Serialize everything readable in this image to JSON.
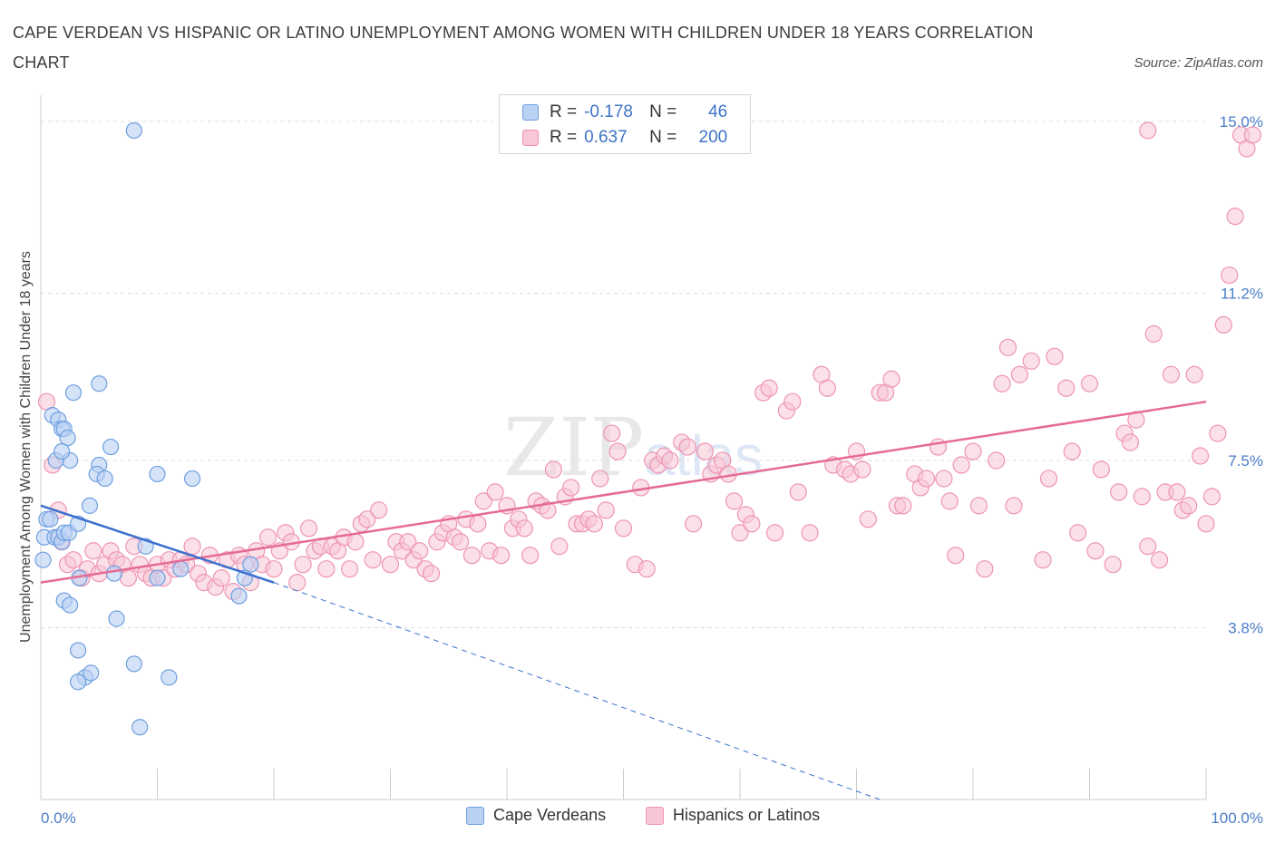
{
  "header": {
    "title": "CAPE VERDEAN VS HISPANIC OR LATINO UNEMPLOYMENT AMONG WOMEN WITH CHILDREN UNDER 18 YEARS CORRELATION CHART",
    "source": "Source: ZipAtlas.com"
  },
  "watermark": {
    "zip": "ZIP",
    "atlas": "atlas"
  },
  "legend": {
    "rows": [
      {
        "r_label": "R =",
        "r_value": "-0.178",
        "n_label": "N =",
        "n_value": "46",
        "color": "#7aa8e8"
      },
      {
        "r_label": "R =",
        "r_value": "0.637",
        "n_label": "N =",
        "n_value": "200",
        "color": "#f29ab8"
      }
    ]
  },
  "bottom_legend": {
    "items": [
      {
        "label": "Cape Verdeans",
        "color": "#7aa8e8"
      },
      {
        "label": "Hispanics or Latinos",
        "color": "#f29ab8"
      }
    ]
  },
  "colors": {
    "blue_fill": "#b9d1f3",
    "blue_stroke": "#6e9fe0",
    "blue_line": "#3a6fcf",
    "pink_fill": "#f8c6d6",
    "pink_stroke": "#ee94b3",
    "pink_line": "#e56b95",
    "grid": "#dddddd",
    "tick_text": "#4a7cc7"
  },
  "chart_data": {
    "type": "scatter",
    "title": "CAPE VERDEAN VS HISPANIC OR LATINO UNEMPLOYMENT AMONG WOMEN WITH CHILDREN UNDER 18 YEARS CORRELATION CHART",
    "xlabel": "",
    "ylabel": "Unemployment Among Women with Children Under 18 years",
    "xlim": [
      0,
      100
    ],
    "ylim": [
      0,
      15.3
    ],
    "x_tick_labels": [
      "0.0%",
      "100.0%"
    ],
    "y_ticks": [
      3.8,
      7.5,
      11.2,
      15.0
    ],
    "y_tick_labels": [
      "3.8%",
      "7.5%",
      "11.2%",
      "15.0%"
    ],
    "grid": true,
    "legend_position": "top-center",
    "series": [
      {
        "name": "Cape Verdeans",
        "r": -0.178,
        "n": 46,
        "trend": {
          "x": [
            0,
            20,
            72
          ],
          "y": [
            6.5,
            4.8,
            0.0
          ],
          "solid_until_x": 20
        },
        "points": [
          [
            8,
            14.8
          ],
          [
            0.5,
            6.2
          ],
          [
            0.3,
            5.8
          ],
          [
            0.8,
            6.2
          ],
          [
            0.2,
            5.3
          ],
          [
            1.2,
            5.8
          ],
          [
            1.5,
            5.8
          ],
          [
            1.8,
            5.7
          ],
          [
            2,
            5.9
          ],
          [
            2.4,
            5.9
          ],
          [
            1,
            8.5
          ],
          [
            1.5,
            8.4
          ],
          [
            1.8,
            8.2
          ],
          [
            2,
            8.2
          ],
          [
            2.3,
            8
          ],
          [
            2.5,
            7.5
          ],
          [
            1.3,
            7.5
          ],
          [
            1.8,
            7.7
          ],
          [
            2.8,
            9
          ],
          [
            5,
            9.2
          ],
          [
            5,
            7.4
          ],
          [
            4.8,
            7.2
          ],
          [
            5.5,
            7.1
          ],
          [
            6,
            7.8
          ],
          [
            10,
            7.2
          ],
          [
            13,
            7.1
          ],
          [
            4.2,
            6.5
          ],
          [
            3.2,
            6.1
          ],
          [
            9,
            5.6
          ],
          [
            12,
            5.1
          ],
          [
            3.3,
            4.9
          ],
          [
            6.3,
            5
          ],
          [
            10,
            4.9
          ],
          [
            2,
            4.4
          ],
          [
            2.5,
            4.3
          ],
          [
            6.5,
            4
          ],
          [
            3.2,
            3.3
          ],
          [
            3.8,
            2.7
          ],
          [
            4.3,
            2.8
          ],
          [
            3.2,
            2.6
          ],
          [
            8,
            3
          ],
          [
            11,
            2.7
          ],
          [
            8.5,
            1.6
          ],
          [
            17,
            4.5
          ],
          [
            18,
            5.2
          ],
          [
            17.5,
            4.9
          ]
        ]
      },
      {
        "name": "Hispanics or Latinos",
        "r": 0.637,
        "n": 200,
        "trend": {
          "x": [
            0,
            100
          ],
          "y": [
            4.8,
            8.8
          ]
        },
        "points": [
          [
            0.5,
            8.8
          ],
          [
            1,
            7.4
          ],
          [
            1.5,
            6.4
          ],
          [
            1.8,
            5.7
          ],
          [
            2.3,
            5.2
          ],
          [
            2.8,
            5.3
          ],
          [
            3.5,
            4.9
          ],
          [
            4,
            5.1
          ],
          [
            4.5,
            5.5
          ],
          [
            5,
            5
          ],
          [
            5.5,
            5.2
          ],
          [
            6,
            5.5
          ],
          [
            6.5,
            5.3
          ],
          [
            7,
            5.2
          ],
          [
            7.5,
            4.9
          ],
          [
            8,
            5.6
          ],
          [
            8.5,
            5.2
          ],
          [
            9,
            5
          ],
          [
            9.5,
            4.9
          ],
          [
            10,
            5.2
          ],
          [
            10.5,
            4.9
          ],
          [
            11,
            5.3
          ],
          [
            11.5,
            5.1
          ],
          [
            12,
            5.3
          ],
          [
            12.5,
            5.2
          ],
          [
            13,
            5.6
          ],
          [
            13.5,
            5
          ],
          [
            14,
            4.8
          ],
          [
            14.5,
            5.4
          ],
          [
            15,
            4.7
          ],
          [
            15.5,
            4.9
          ],
          [
            16,
            5.3
          ],
          [
            16.5,
            4.6
          ],
          [
            17,
            5.4
          ],
          [
            17.5,
            5.2
          ],
          [
            18,
            4.8
          ],
          [
            18.5,
            5.5
          ],
          [
            19,
            5.2
          ],
          [
            19.5,
            5.8
          ],
          [
            20,
            5.1
          ],
          [
            20.5,
            5.5
          ],
          [
            21,
            5.9
          ],
          [
            21.5,
            5.7
          ],
          [
            22,
            4.8
          ],
          [
            22.5,
            5.2
          ],
          [
            23,
            6
          ],
          [
            23.5,
            5.5
          ],
          [
            24,
            5.6
          ],
          [
            24.5,
            5.1
          ],
          [
            25,
            5.6
          ],
          [
            25.5,
            5.5
          ],
          [
            26,
            5.8
          ],
          [
            26.5,
            5.1
          ],
          [
            27,
            5.7
          ],
          [
            27.5,
            6.1
          ],
          [
            28,
            6.2
          ],
          [
            28.5,
            5.3
          ],
          [
            29,
            6.4
          ],
          [
            30,
            5.2
          ],
          [
            30.5,
            5.7
          ],
          [
            31,
            5.5
          ],
          [
            31.5,
            5.7
          ],
          [
            32,
            5.3
          ],
          [
            32.5,
            5.5
          ],
          [
            33,
            5.1
          ],
          [
            33.5,
            5
          ],
          [
            34,
            5.7
          ],
          [
            34.5,
            5.9
          ],
          [
            35,
            6.1
          ],
          [
            35.5,
            5.8
          ],
          [
            36,
            5.7
          ],
          [
            36.5,
            6.2
          ],
          [
            37,
            5.4
          ],
          [
            37.5,
            6.1
          ],
          [
            38,
            6.6
          ],
          [
            38.5,
            5.5
          ],
          [
            39,
            6.8
          ],
          [
            39.5,
            5.4
          ],
          [
            40,
            6.5
          ],
          [
            40.5,
            6
          ],
          [
            41,
            6.2
          ],
          [
            41.5,
            6
          ],
          [
            42,
            5.4
          ],
          [
            42.5,
            6.6
          ],
          [
            43,
            6.5
          ],
          [
            43.5,
            6.4
          ],
          [
            44,
            7.3
          ],
          [
            44.5,
            5.6
          ],
          [
            45,
            6.7
          ],
          [
            45.5,
            6.9
          ],
          [
            46,
            6.1
          ],
          [
            46.5,
            6.1
          ],
          [
            47,
            6.2
          ],
          [
            47.5,
            6.1
          ],
          [
            48,
            7.1
          ],
          [
            48.5,
            6.4
          ],
          [
            49,
            8.1
          ],
          [
            49.5,
            7.7
          ],
          [
            50,
            6
          ],
          [
            51,
            5.2
          ],
          [
            51.5,
            6.9
          ],
          [
            52,
            5.1
          ],
          [
            52.5,
            7.5
          ],
          [
            53,
            7.4
          ],
          [
            53.5,
            7.6
          ],
          [
            54,
            7.5
          ],
          [
            55,
            7.9
          ],
          [
            55.5,
            7.8
          ],
          [
            56,
            6.1
          ],
          [
            57,
            7.7
          ],
          [
            57.5,
            7.2
          ],
          [
            58,
            7.4
          ],
          [
            58.5,
            7.5
          ],
          [
            59,
            7.2
          ],
          [
            59.5,
            6.6
          ],
          [
            60,
            5.9
          ],
          [
            60.5,
            6.3
          ],
          [
            61,
            6.1
          ],
          [
            62,
            9
          ],
          [
            62.5,
            9.1
          ],
          [
            63,
            5.9
          ],
          [
            64,
            8.6
          ],
          [
            64.5,
            8.8
          ],
          [
            65,
            6.8
          ],
          [
            66,
            5.9
          ],
          [
            67,
            9.4
          ],
          [
            67.5,
            9.1
          ],
          [
            68,
            7.4
          ],
          [
            69,
            7.3
          ],
          [
            69.5,
            7.2
          ],
          [
            70,
            7.7
          ],
          [
            70.5,
            7.3
          ],
          [
            71,
            6.2
          ],
          [
            72,
            9
          ],
          [
            72.5,
            9
          ],
          [
            73,
            9.3
          ],
          [
            73.5,
            6.5
          ],
          [
            74,
            6.5
          ],
          [
            75,
            7.2
          ],
          [
            75.5,
            6.9
          ],
          [
            76,
            7.1
          ],
          [
            77,
            7.8
          ],
          [
            77.5,
            7.1
          ],
          [
            78,
            6.6
          ],
          [
            78.5,
            5.4
          ],
          [
            79,
            7.4
          ],
          [
            80,
            7.7
          ],
          [
            80.5,
            6.5
          ],
          [
            81,
            5.1
          ],
          [
            82,
            7.5
          ],
          [
            82.5,
            9.2
          ],
          [
            83,
            10
          ],
          [
            83.5,
            6.5
          ],
          [
            84,
            9.4
          ],
          [
            85,
            9.7
          ],
          [
            86,
            5.3
          ],
          [
            86.5,
            7.1
          ],
          [
            87,
            9.8
          ],
          [
            88,
            9.1
          ],
          [
            88.5,
            7.7
          ],
          [
            89,
            5.9
          ],
          [
            90,
            9.2
          ],
          [
            90.5,
            5.5
          ],
          [
            91,
            7.3
          ],
          [
            92,
            5.2
          ],
          [
            92.5,
            6.8
          ],
          [
            93,
            8.1
          ],
          [
            93.5,
            7.9
          ],
          [
            94,
            8.4
          ],
          [
            94.5,
            6.7
          ],
          [
            95,
            5.6
          ],
          [
            95.5,
            10.3
          ],
          [
            96,
            5.3
          ],
          [
            96.5,
            6.8
          ],
          [
            97,
            9.4
          ],
          [
            97.5,
            6.8
          ],
          [
            98,
            6.4
          ],
          [
            98.5,
            6.5
          ],
          [
            99,
            9.4
          ],
          [
            99.5,
            7.6
          ],
          [
            100,
            6.1
          ],
          [
            100.5,
            6.7
          ],
          [
            101,
            8.1
          ],
          [
            101.5,
            10.5
          ],
          [
            102,
            11.6
          ],
          [
            102.5,
            12.9
          ],
          [
            103,
            14.7
          ],
          [
            103.5,
            14.4
          ],
          [
            104,
            14.7
          ],
          [
            95,
            14.8
          ]
        ]
      }
    ]
  }
}
